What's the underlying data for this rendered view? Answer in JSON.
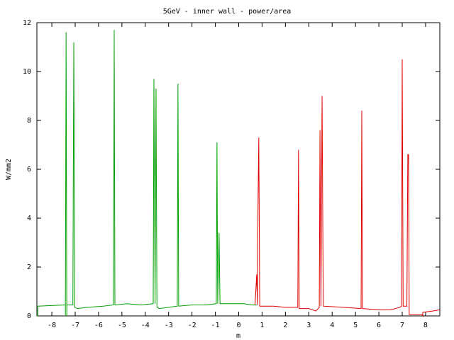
{
  "chart_data": {
    "type": "line",
    "title": "5GeV - inner wall - power/area",
    "x_label": "m",
    "y_label": "W/mm2",
    "xlim": [
      -8.64,
      8.61
    ],
    "ylim": [
      0,
      12
    ],
    "xticks": [
      -8,
      -7,
      -6,
      -5,
      -4,
      -3,
      -2,
      -1,
      0,
      1,
      2,
      3,
      4,
      5,
      6,
      7,
      8
    ],
    "yticks": [
      0,
      2,
      4,
      6,
      8,
      10,
      12
    ],
    "grid": false,
    "series": [
      {
        "color": "#00a000",
        "x": [
          -8.64,
          -8.6,
          -8.6,
          -7.42,
          -7.42,
          -7.39,
          -7.36,
          -7.36,
          -7.1,
          -7.06,
          -7.02,
          -6.9,
          -6.5,
          -5.8,
          -5.36,
          -5.33,
          -5.3,
          -4.8,
          -4.2,
          -3.66,
          -3.63,
          -3.58,
          -3.54,
          -3.5,
          -3.4,
          -3.0,
          -2.63,
          -2.6,
          -2.57,
          -2.0,
          -1.4,
          -0.96,
          -0.93,
          -0.9,
          -0.84,
          -0.8,
          0.2,
          0.6,
          0.77
        ],
        "values": [
          0,
          0,
          0.4,
          0.45,
          0,
          11.6,
          0,
          0.45,
          0.45,
          11.2,
          0.35,
          0.3,
          0.35,
          0.4,
          0.45,
          11.7,
          0.45,
          0.5,
          0.45,
          0.5,
          9.7,
          0.5,
          9.3,
          0.35,
          0.3,
          0.35,
          0.4,
          9.5,
          0.4,
          0.45,
          0.45,
          0.5,
          7.1,
          0.5,
          3.4,
          0.5,
          0.5,
          0.45,
          0.45
        ]
      },
      {
        "color": "#e00000",
        "x": [
          0.7,
          0.77,
          0.8,
          0.83,
          0.86,
          0.9,
          1.5,
          2.0,
          2.53,
          2.56,
          2.59,
          3.0,
          3.3,
          3.45,
          3.48,
          3.52,
          3.57,
          3.62,
          4.5,
          5.24,
          5.27,
          5.3,
          6.0,
          6.5,
          6.9,
          6.97,
          7.0,
          7.04,
          7.2,
          7.24,
          7.27,
          7.3,
          7.85,
          7.88,
          7.88,
          8.3,
          8.6
        ],
        "values": [
          0.45,
          1.7,
          0.45,
          4.8,
          7.3,
          0.4,
          0.4,
          0.35,
          0.35,
          6.8,
          0.3,
          0.3,
          0.2,
          0.35,
          7.6,
          0.4,
          9.0,
          0.4,
          0.35,
          0.3,
          8.4,
          0.3,
          0.25,
          0.25,
          0.35,
          0.4,
          10.5,
          0.4,
          0.4,
          6.6,
          6.6,
          0.05,
          0.05,
          0,
          0.15,
          0.2,
          0.25
        ]
      }
    ]
  }
}
